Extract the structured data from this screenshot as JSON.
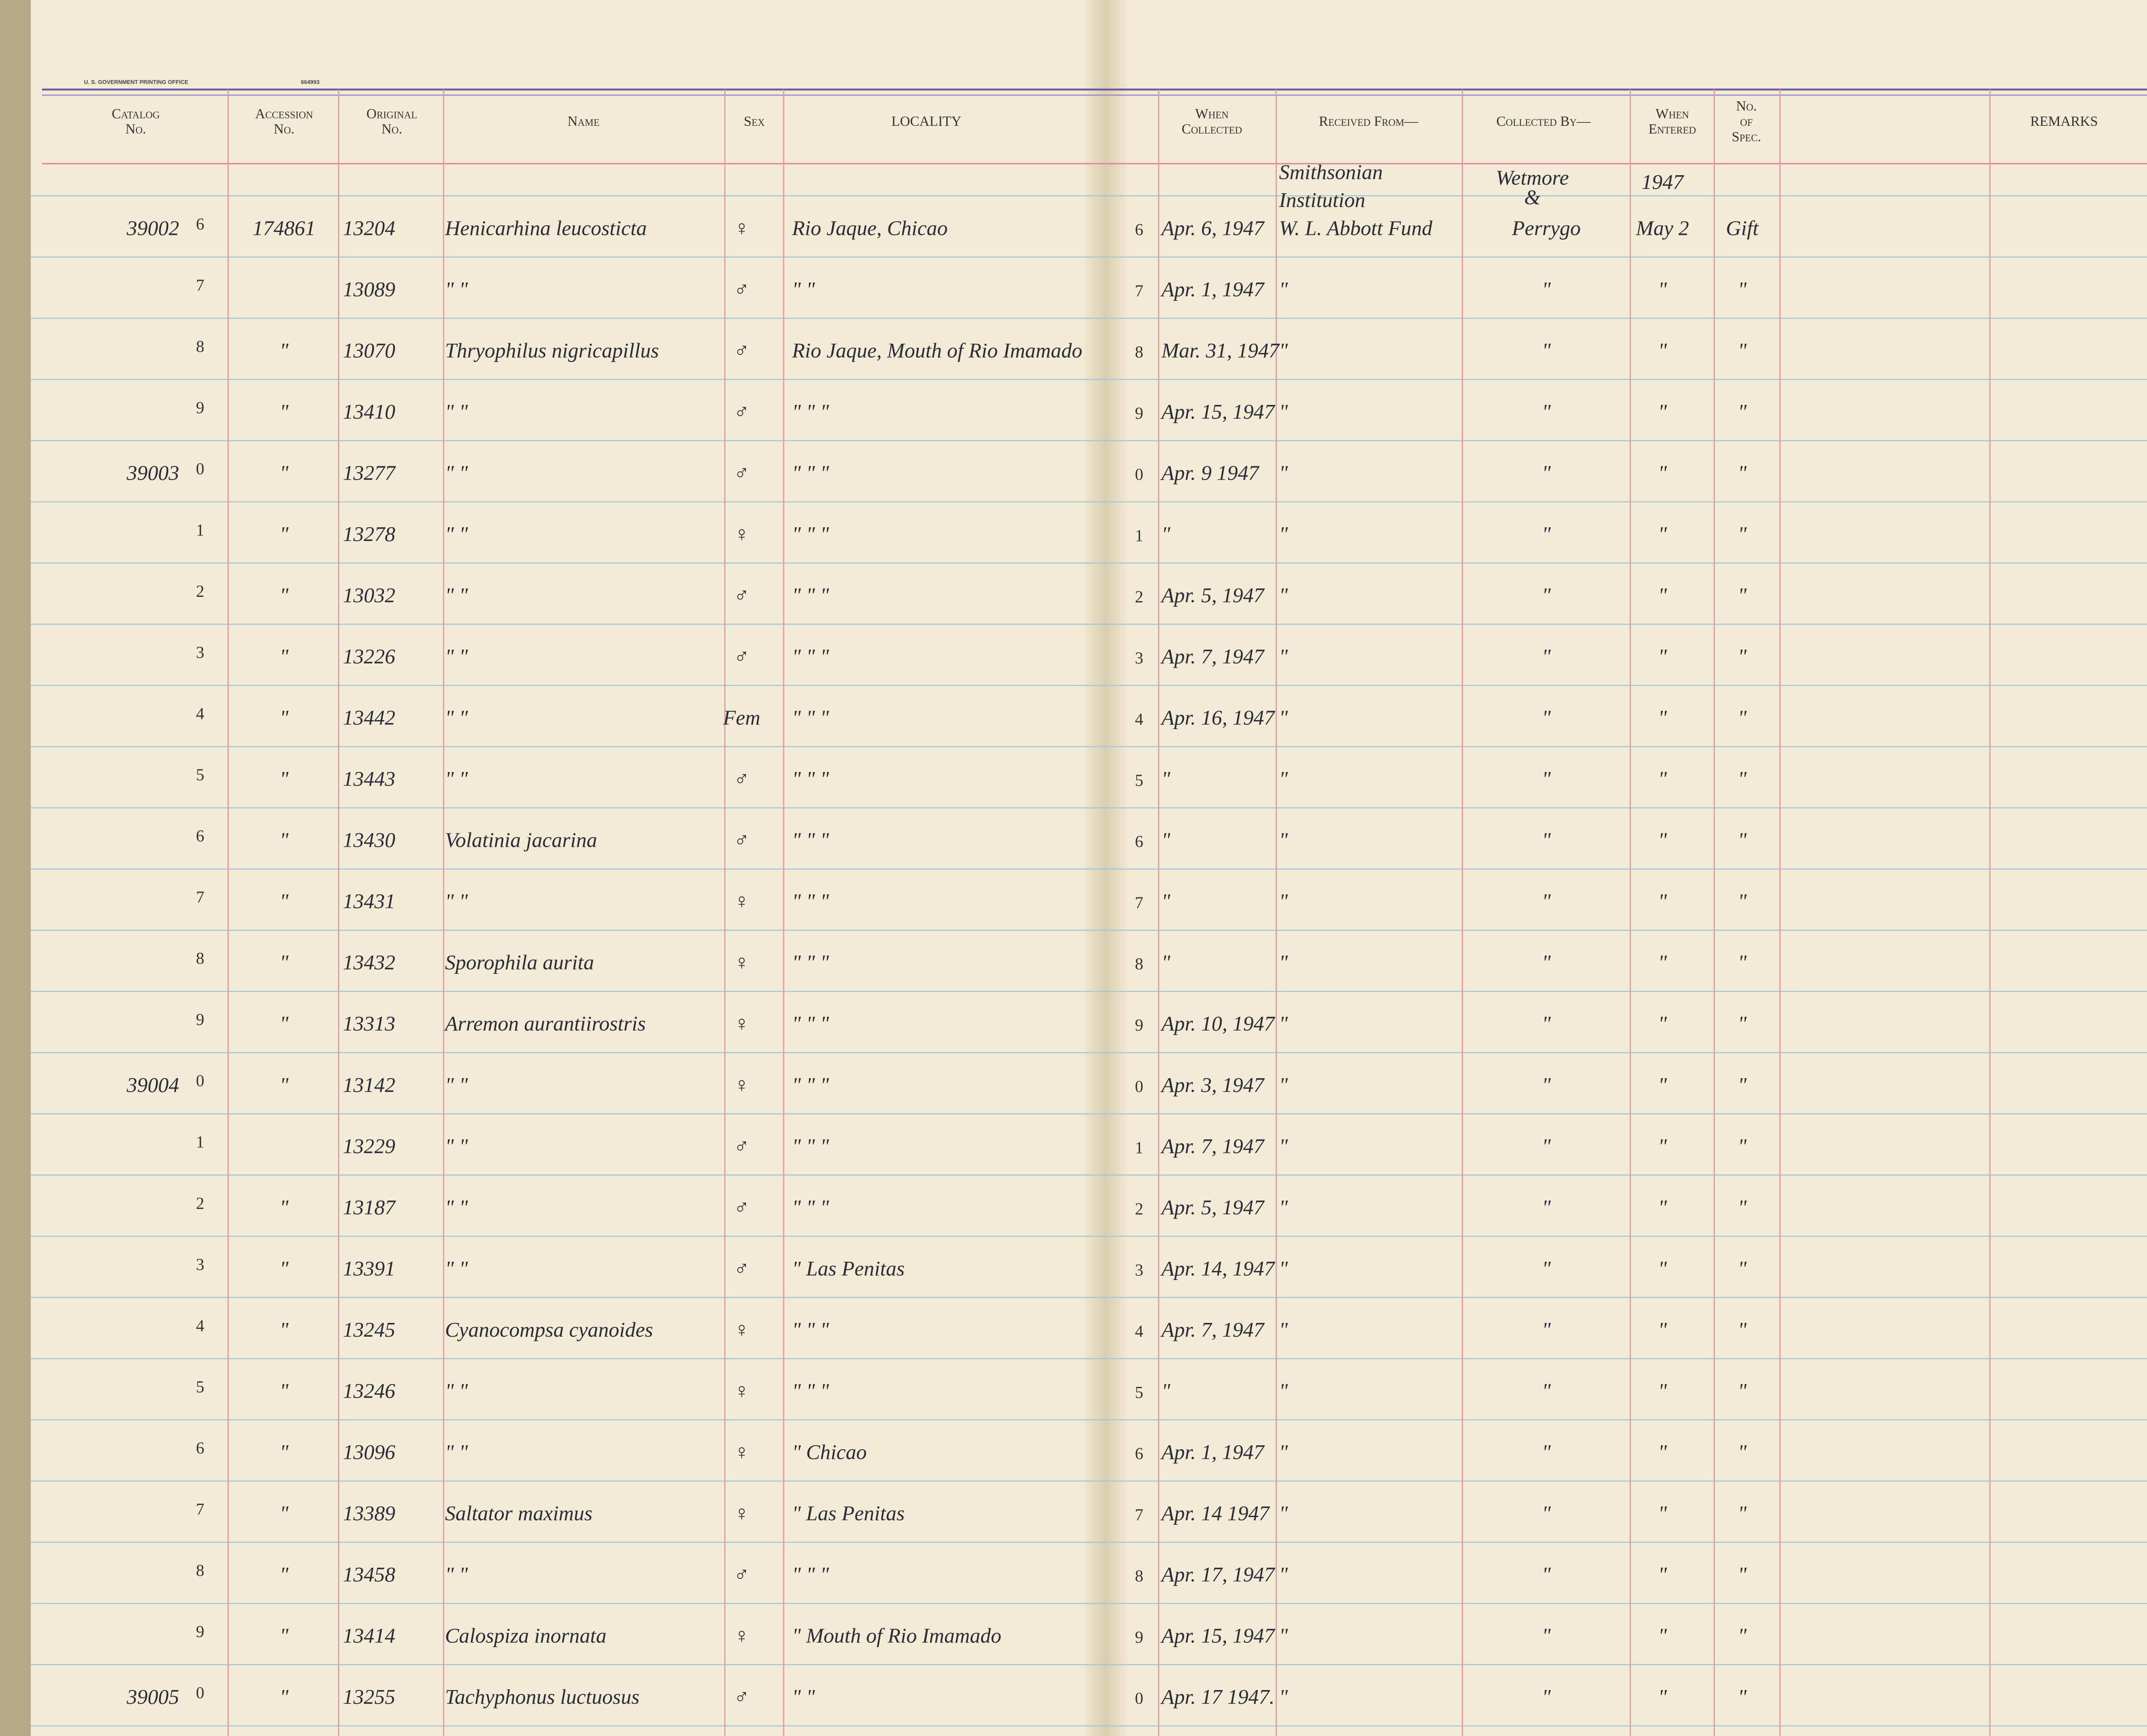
{
  "header": {
    "printer": "U. S. GOVERNMENT PRINTING OFFICE",
    "print_no": "664993",
    "left_columns": [
      [
        "Catalog",
        "No."
      ],
      [
        "Accession",
        "No."
      ],
      [
        "Original",
        "No."
      ],
      [
        "Name"
      ],
      [
        "Sex"
      ],
      [
        "LOCALITY"
      ]
    ],
    "right_columns": [
      [
        "When",
        "Collected"
      ],
      [
        "Received From—"
      ],
      [
        "Collected By—"
      ],
      [
        "When",
        "Entered"
      ],
      [
        "No.",
        "of",
        "Spec."
      ],
      [
        "REMARKS"
      ]
    ]
  },
  "rows": [
    {
      "catalog_prefix": "39002",
      "catalog": "6",
      "accession": "174861",
      "original": "13204",
      "name": "Henicarhina leucosticta",
      "sex": "♀",
      "locality": "Rio Jaque, Chicao",
      "line": "6",
      "collected_on": "Apr. 6, 1947",
      "received_above": [
        "Smithsonian",
        "Institution"
      ],
      "collector_above": [
        "Wetmore",
        "&"
      ],
      "entered_above": "1947",
      "received": "W. L. Abbott Fund",
      "collector": "Perrygo",
      "entered": "May 2",
      "spec": "Gift"
    },
    {
      "catalog": "7",
      "original": "13089",
      "name": "\"      \"",
      "sex": "♂",
      "locality": "\"      \"",
      "line": "7",
      "collected_on": "Apr. 1, 1947",
      "received": "\"",
      "collector": "\"",
      "entered": "\"",
      "spec": "\""
    },
    {
      "catalog": "8",
      "accession": "\"",
      "original": "13070",
      "name": "Thryophilus nigricapillus",
      "sex": "♂",
      "locality": "Rio Jaque, Mouth of Rio Imamado",
      "line": "8",
      "collected_on": "Mar. 31, 1947",
      "received": "\"",
      "collector": "\"",
      "entered": "\"",
      "spec": "\""
    },
    {
      "catalog": "9",
      "accession": "\"",
      "original": "13410",
      "name": "\"      \"",
      "sex": "♂",
      "locality": "\"    \"    \"",
      "line": "9",
      "collected_on": "Apr. 15, 1947",
      "received": "\"",
      "collector": "\"",
      "entered": "\"",
      "spec": "\""
    },
    {
      "catalog_prefix": "39003",
      "catalog": "0",
      "accession": "\"",
      "original": "13277",
      "name": "\"      \"",
      "sex": "♂",
      "locality": "\"    \"    \"",
      "line": "0",
      "collected_on": "Apr. 9 1947",
      "received": "\"",
      "collector": "\"",
      "entered": "\"",
      "spec": "\""
    },
    {
      "catalog": "1",
      "accession": "\"",
      "original": "13278",
      "name": "\"      \"",
      "sex": "♀",
      "locality": "\"    \"    \"",
      "line": "1",
      "collected_on": "\"",
      "received": "\"",
      "collector": "\"",
      "entered": "\"",
      "spec": "\""
    },
    {
      "catalog": "2",
      "accession": "\"",
      "original": "13032",
      "name": "\"      \"",
      "sex": "♂",
      "locality": "\"    \"    \"",
      "line": "2",
      "collected_on": "Apr. 5, 1947",
      "received": "\"",
      "collector": "\"",
      "entered": "\"",
      "spec": "\""
    },
    {
      "catalog": "3",
      "accession": "\"",
      "original": "13226",
      "name": "\"      \"",
      "sex": "♂",
      "locality": "\"    \"    \"",
      "line": "3",
      "collected_on": "Apr. 7, 1947",
      "received": "\"",
      "collector": "\"",
      "entered": "\"",
      "spec": "\""
    },
    {
      "catalog": "4",
      "accession": "\"",
      "original": "13442",
      "name": "\"      \"",
      "sex": "Fem",
      "locality": "\"    \"    \"",
      "line": "4",
      "collected_on": "Apr. 16, 1947",
      "received": "\"",
      "collector": "\"",
      "entered": "\"",
      "spec": "\""
    },
    {
      "catalog": "5",
      "accession": "\"",
      "original": "13443",
      "name": "\"      \"",
      "sex": "♂",
      "locality": "\"    \"    \"",
      "line": "5",
      "collected_on": "\"",
      "received": "\"",
      "collector": "\"",
      "entered": "\"",
      "spec": "\""
    },
    {
      "catalog": "6",
      "accession": "\"",
      "original": "13430",
      "name": "Volatinia jacarina",
      "sex": "♂",
      "locality": "\"    \"    \"",
      "line": "6",
      "collected_on": "\"",
      "received": "\"",
      "collector": "\"",
      "entered": "\"",
      "spec": "\""
    },
    {
      "catalog": "7",
      "accession": "\"",
      "original": "13431",
      "name": "\"      \"",
      "sex": "♀",
      "locality": "\"    \"    \"",
      "line": "7",
      "collected_on": "\"",
      "received": "\"",
      "collector": "\"",
      "entered": "\"",
      "spec": "\""
    },
    {
      "catalog": "8",
      "accession": "\"",
      "original": "13432",
      "name": "Sporophila aurita",
      "sex": "♀",
      "locality": "\"    \"    \"",
      "line": "8",
      "collected_on": "\"",
      "received": "\"",
      "collector": "\"",
      "entered": "\"",
      "spec": "\""
    },
    {
      "catalog": "9",
      "accession": "\"",
      "original": "13313",
      "name": "Arremon aurantiirostris",
      "sex": "♀",
      "locality": "\"    \"    \"",
      "line": "9",
      "collected_on": "Apr. 10, 1947",
      "received": "\"",
      "collector": "\"",
      "entered": "\"",
      "spec": "\""
    },
    {
      "catalog_prefix": "39004",
      "catalog": "0",
      "accession": "\"",
      "original": "13142",
      "name": "\"      \"",
      "sex": "♀",
      "locality": "\"    \"    \"",
      "line": "0",
      "collected_on": "Apr. 3, 1947",
      "received": "\"",
      "collector": "\"",
      "entered": "\"",
      "spec": "\""
    },
    {
      "catalog": "1",
      "original": "13229",
      "name": "\"      \"",
      "sex": "♂",
      "locality": "\"    \"    \"",
      "line": "1",
      "collected_on": "Apr. 7, 1947",
      "received": "\"",
      "collector": "\"",
      "entered": "\"",
      "spec": "\""
    },
    {
      "catalog": "2",
      "accession": "\"",
      "original": "13187",
      "name": "\"      \"",
      "sex": "♂",
      "locality": "\"    \"    \"",
      "line": "2",
      "collected_on": "Apr. 5, 1947",
      "received": "\"",
      "collector": "\"",
      "entered": "\"",
      "spec": "\""
    },
    {
      "catalog": "3",
      "accession": "\"",
      "original": "13391",
      "name": "\"      \"",
      "sex": "♂",
      "locality": "\"      Las Penitas",
      "line": "3",
      "collected_on": "Apr. 14, 1947",
      "received": "\"",
      "collector": "\"",
      "entered": "\"",
      "spec": "\""
    },
    {
      "catalog": "4",
      "accession": "\"",
      "original": "13245",
      "name": "Cyanocompsa cyanoides",
      "sex": "♀",
      "locality": "\"    \"    \"",
      "line": "4",
      "collected_on": "Apr. 7, 1947",
      "received": "\"",
      "collector": "\"",
      "entered": "\"",
      "spec": "\""
    },
    {
      "catalog": "5",
      "accession": "\"",
      "original": "13246",
      "name": "\"      \"",
      "sex": "♀",
      "locality": "\"    \"    \"",
      "line": "5",
      "collected_on": "\"",
      "received": "\"",
      "collector": "\"",
      "entered": "\"",
      "spec": "\""
    },
    {
      "catalog": "6",
      "accession": "\"",
      "original": "13096",
      "name": "\"      \"",
      "sex": "♀",
      "locality": "\"   Chicao",
      "line": "6",
      "collected_on": "Apr. 1, 1947",
      "received": "\"",
      "collector": "\"",
      "entered": "\"",
      "spec": "\""
    },
    {
      "catalog": "7",
      "accession": "\"",
      "original": "13389",
      "name": "Saltator maximus",
      "sex": "♀",
      "locality": "\"   Las Penitas",
      "line": "7",
      "collected_on": "Apr. 14 1947",
      "received": "\"",
      "collector": "\"",
      "entered": "\"",
      "spec": "\""
    },
    {
      "catalog": "8",
      "accession": "\"",
      "original": "13458",
      "name": "\"      \"",
      "sex": "♂",
      "locality": "\"    \"    \"",
      "line": "8",
      "collected_on": "Apr. 17, 1947",
      "received": "\"",
      "collector": "\"",
      "entered": "\"",
      "spec": "\""
    },
    {
      "catalog": "9",
      "accession": "\"",
      "original": "13414",
      "name": "Calospiza inornata",
      "sex": "♀",
      "locality": "\" Mouth of Rio Imamado",
      "line": "9",
      "collected_on": "Apr. 15, 1947",
      "received": "\"",
      "collector": "\"",
      "entered": "\"",
      "spec": "\""
    },
    {
      "catalog_prefix": "39005",
      "catalog": "0",
      "accession": "\"",
      "original": "13255",
      "name": "Tachyphonus luctuosus",
      "sex": "♂",
      "locality": "\"    \"",
      "line": "0",
      "collected_on": "Apr. 17 1947.",
      "received": "\"",
      "collector": "\"",
      "entered": "\"",
      "spec": "\""
    }
  ]
}
